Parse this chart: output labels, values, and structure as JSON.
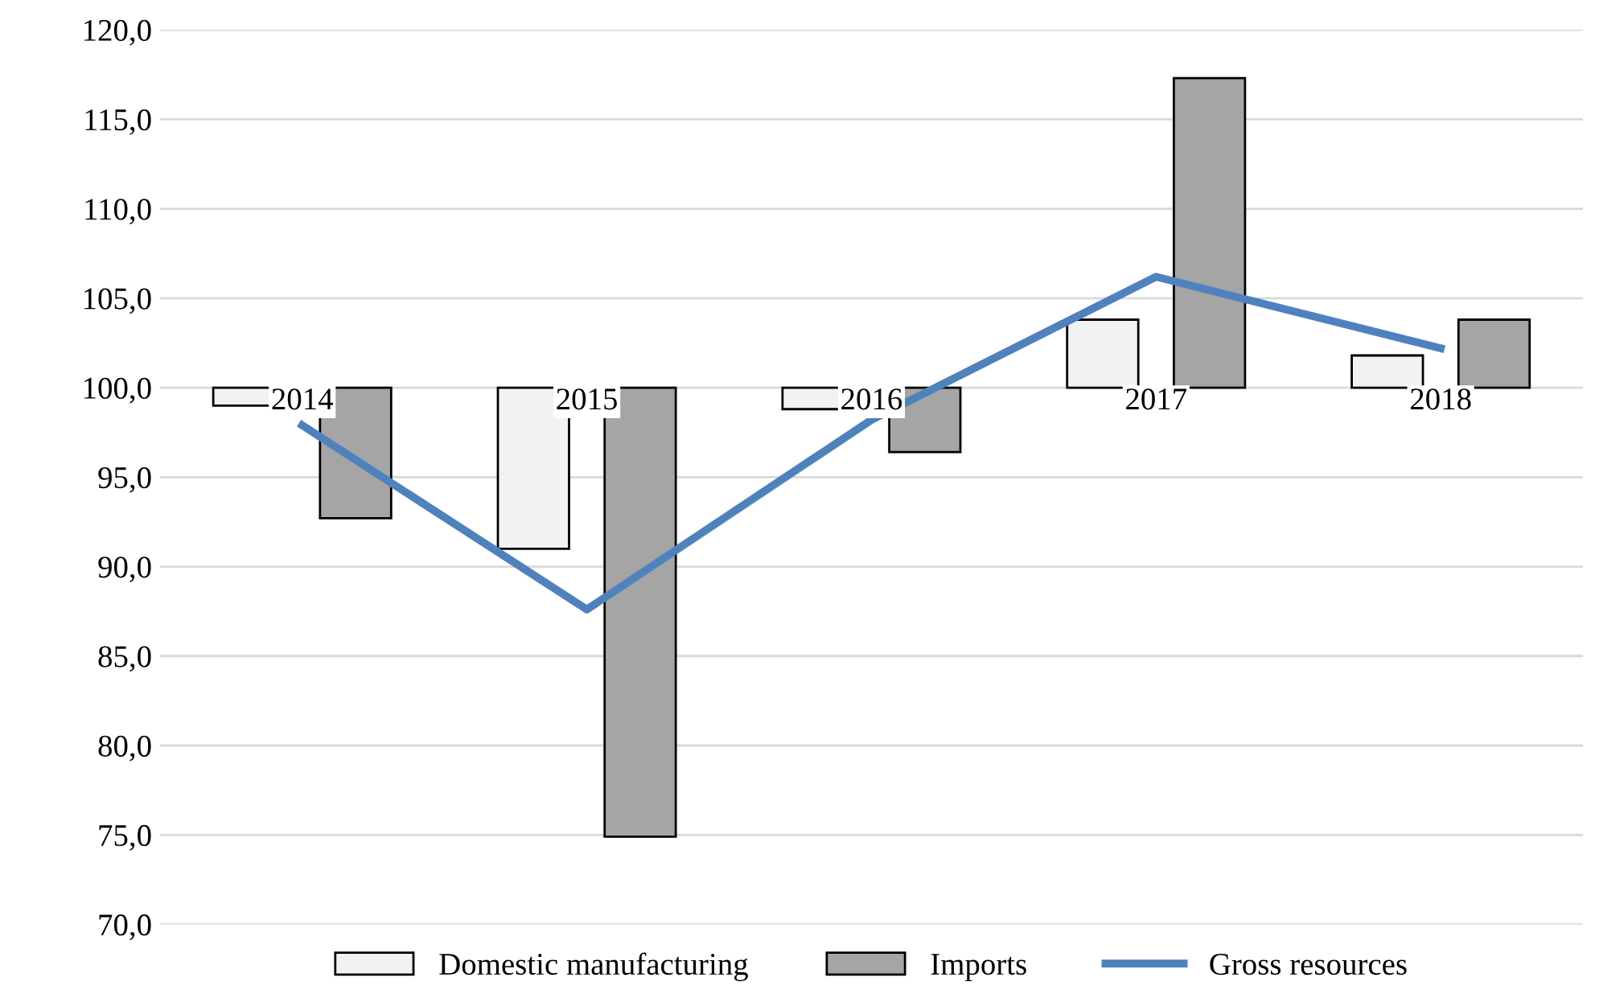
{
  "chart_data": {
    "type": "bar",
    "categories": [
      "2014",
      "2015",
      "2016",
      "2017",
      "2018"
    ],
    "series": [
      {
        "name": "Domestic manufacturing",
        "color": "#f2f2f2",
        "base": [
          100,
          100,
          100,
          100,
          100
        ],
        "values": [
          -1.0,
          -9.0,
          -1.2,
          3.8,
          1.8
        ]
      },
      {
        "name": "Imports",
        "color": "#a5a5a5",
        "base": [
          100,
          100,
          100,
          100,
          100
        ],
        "values": [
          -7.3,
          -25.1,
          -3.6,
          17.3,
          3.8
        ]
      },
      {
        "name": "Gross resources",
        "type": "line",
        "color": "#4f81bd",
        "values": [
          97.9,
          87.6,
          98.2,
          106.2,
          102.2
        ]
      }
    ],
    "ylim": [
      70,
      120
    ],
    "yticks": [
      {
        "value": 70,
        "label": "70,0"
      },
      {
        "value": 75,
        "label": "75,0"
      },
      {
        "value": 80,
        "label": "80,0"
      },
      {
        "value": 85,
        "label": "85,0"
      },
      {
        "value": 90,
        "label": "90,0"
      },
      {
        "value": 95,
        "label": "95,0"
      },
      {
        "value": 100,
        "label": "100,0"
      },
      {
        "value": 105,
        "label": "105,0"
      },
      {
        "value": 110,
        "label": "110,0"
      },
      {
        "value": 115,
        "label": "115,0"
      },
      {
        "value": 120,
        "label": "120,0"
      }
    ],
    "grid": "y",
    "legend": "bottom",
    "marker": "none"
  }
}
